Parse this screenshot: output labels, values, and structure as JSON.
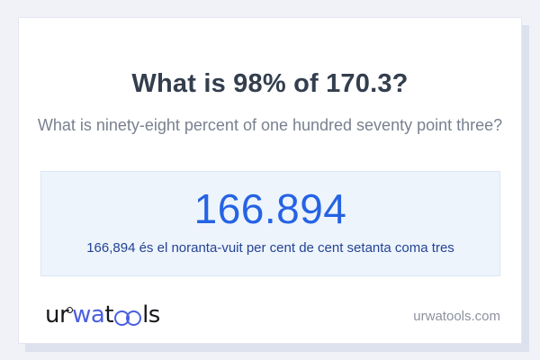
{
  "card": {
    "title": "What is 98% of 170.3?",
    "subtitle": "What is ninety-eight percent of one hundred seventy point three?",
    "answer": {
      "value": "166.894",
      "description": "166,894 és el noranta-vuit per cent de cent setanta coma tres"
    },
    "footer": {
      "logo": {
        "part_ur": "ur",
        "part_wa": "wa",
        "part_t": "t",
        "part_ls": "ls",
        "ring_icon": "degree-ring-icon",
        "glasses_icon": "oo-glasses-icon"
      },
      "website": "urwatools.com"
    }
  },
  "colors": {
    "page_bg": "#f0f2f7",
    "card_bg": "#ffffff",
    "card_shadow": "#dce1ee",
    "answer_box_bg": "#edf4fc",
    "answer_box_border": "#d9e7f5",
    "answer_value": "#2563e3",
    "answer_description": "#254394",
    "title": "#333e4e",
    "subtitle": "#79808f",
    "logo_black": "#17181c",
    "logo_blue": "#4a5fe0",
    "website": "#8d929d"
  }
}
